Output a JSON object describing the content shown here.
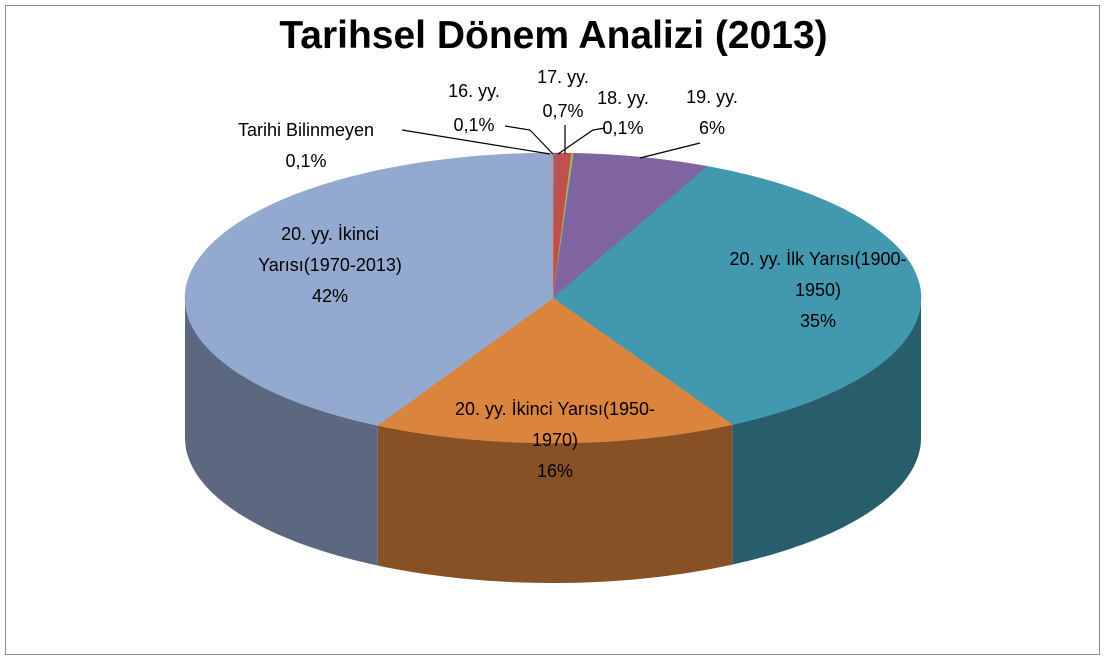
{
  "chart_data": {
    "type": "pie",
    "title": "Tarihsel Dönem Analizi (2013)",
    "categories": [
      "16. yy.",
      "17. yy.",
      "18. yy.",
      "19. yy.",
      "20. yy. İlk Yarısı(1900-1950)",
      "20. yy. İkinci Yarısı(1950-1970)",
      "20. yy. İkinci Yarısı(1970-2013)",
      "Tarihi Bilinmeyen"
    ],
    "values": [
      0.1,
      0.7,
      0.1,
      6,
      35,
      16,
      42,
      0.1
    ],
    "value_labels": [
      "0,1%",
      "0,7%",
      "0,1%",
      "6%",
      "35%",
      "16%",
      "42%",
      "0,1%"
    ],
    "colors": [
      "#4f81bd",
      "#c0504d",
      "#9bbb59",
      "#8064a2",
      "#4198af",
      "#db843d",
      "#93a9cf",
      "#d19392"
    ]
  }
}
